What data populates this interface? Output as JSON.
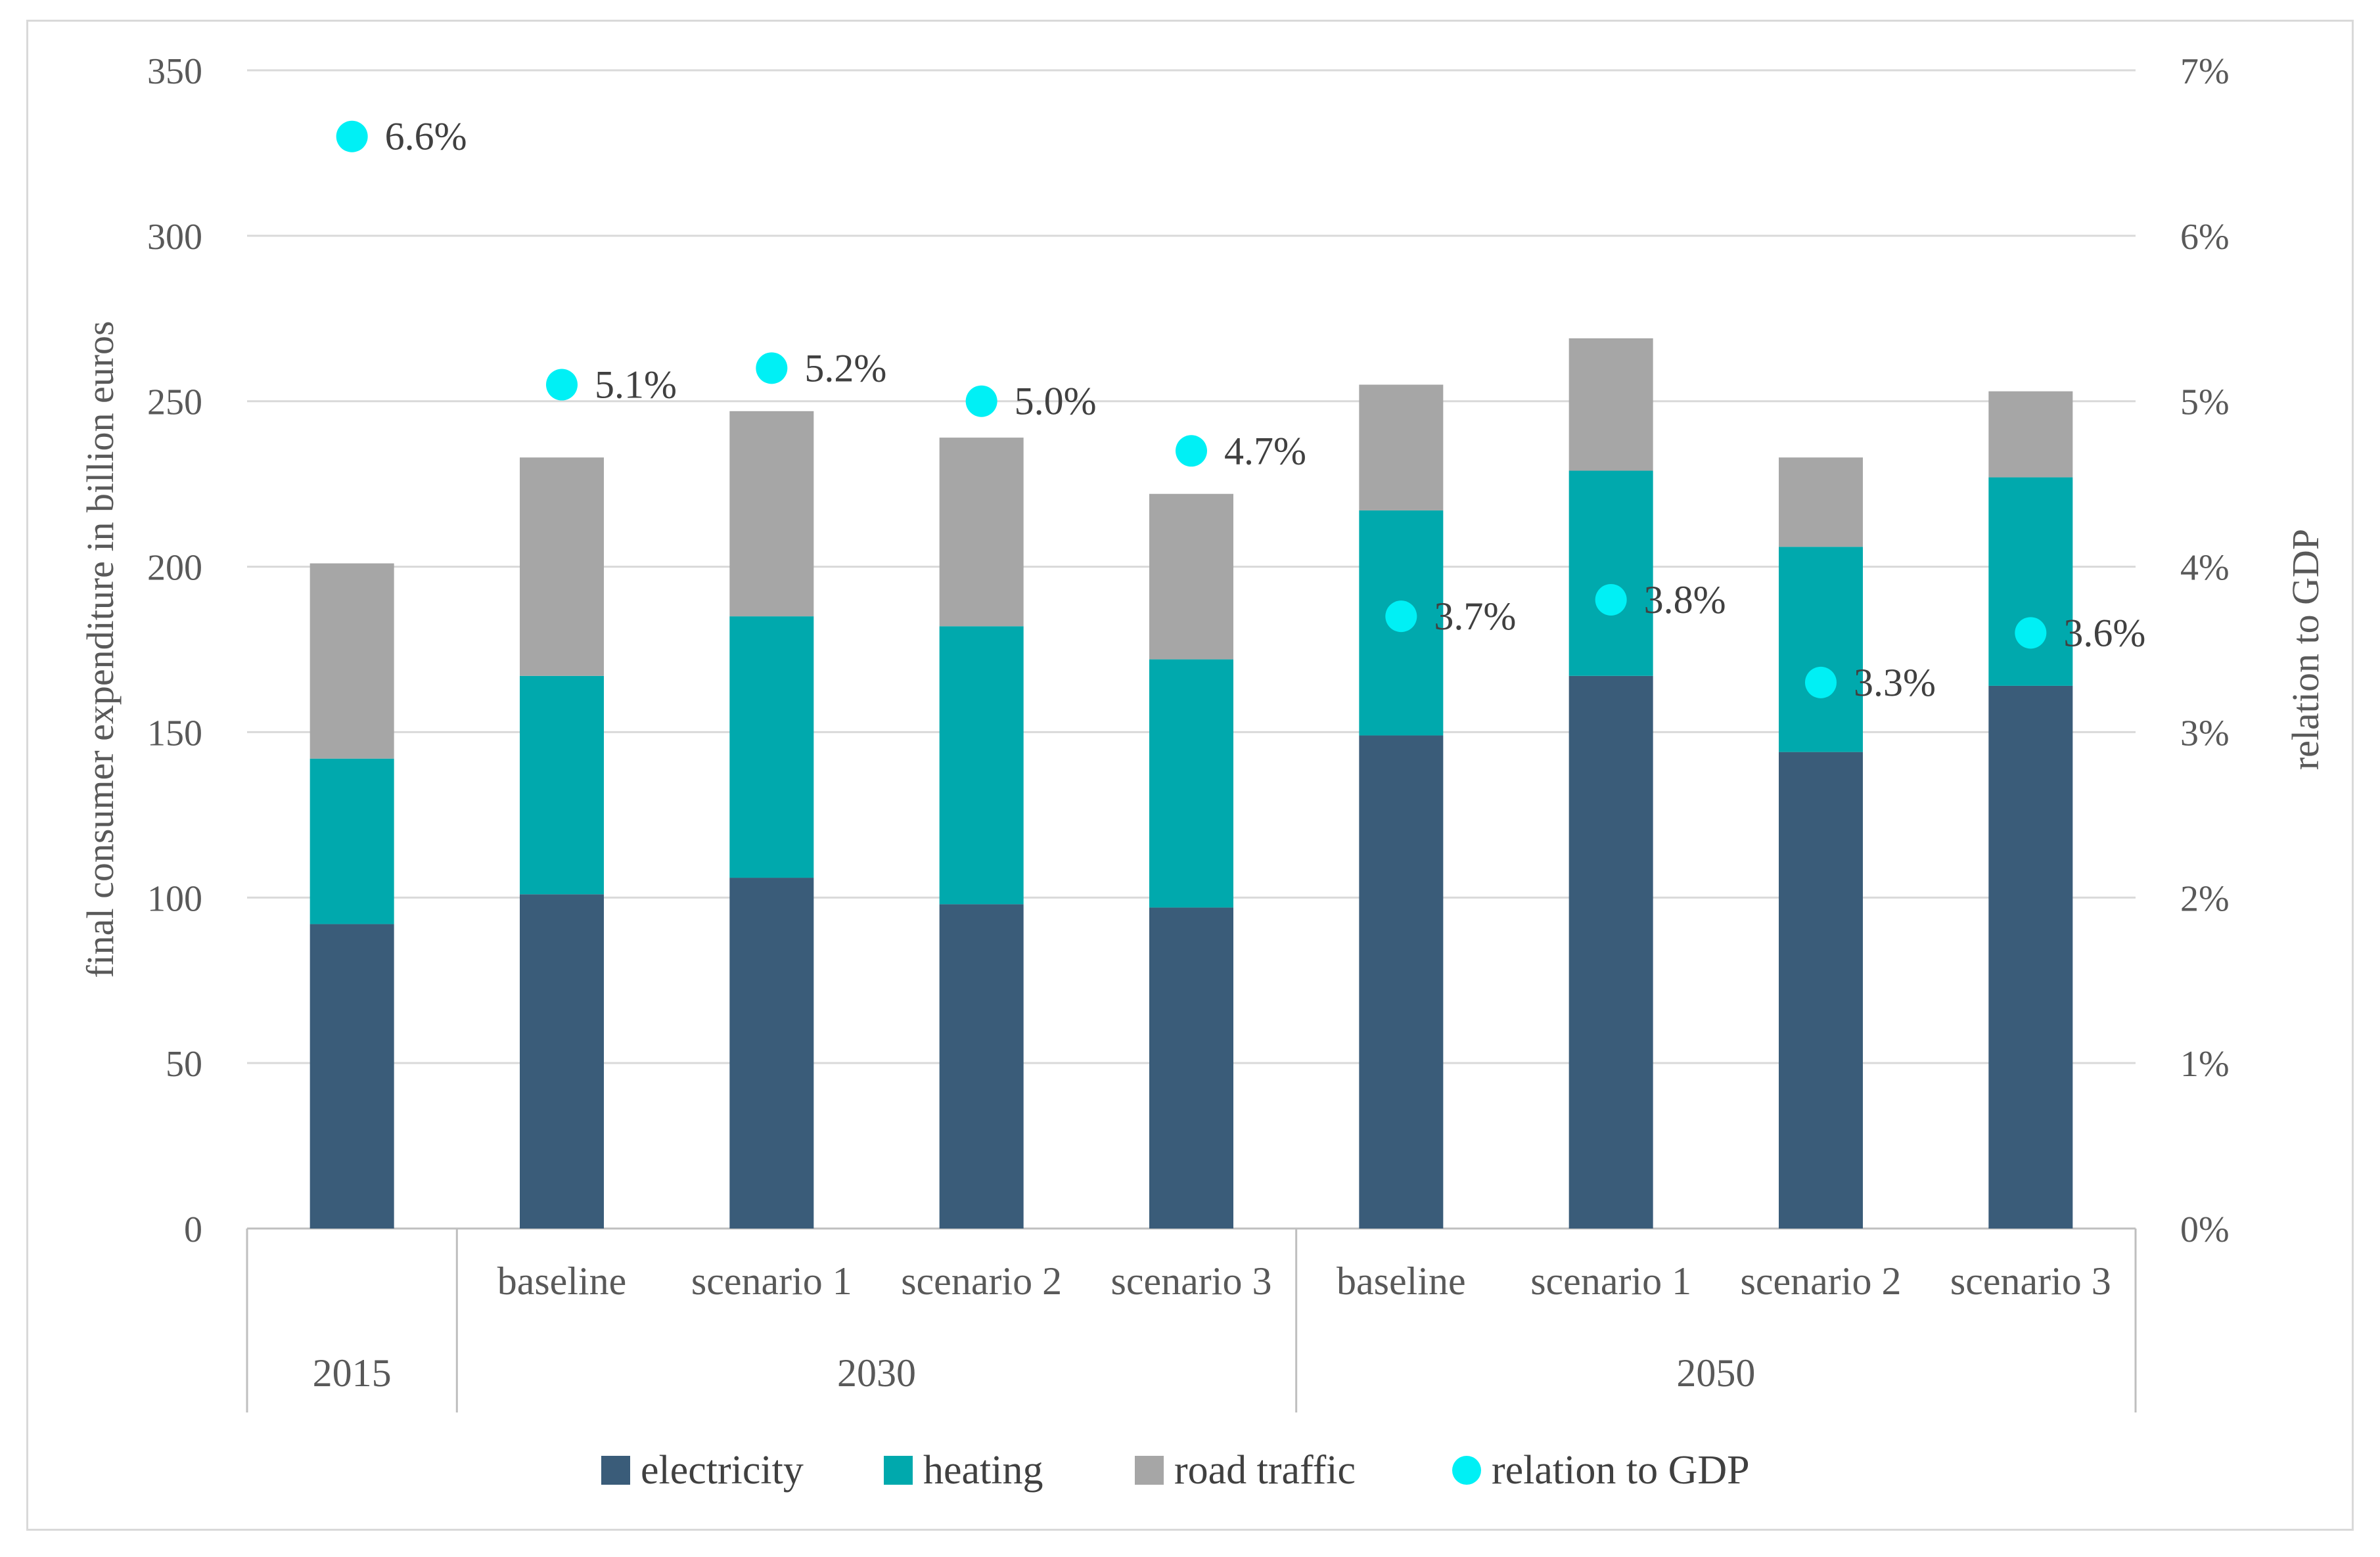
{
  "chart_data": {
    "type": "bar",
    "stacked": true,
    "categories": [
      {
        "label": "",
        "group": "2015"
      },
      {
        "label": "baseline",
        "group": "2030"
      },
      {
        "label": "scenario 1",
        "group": "2030"
      },
      {
        "label": "scenario 2",
        "group": "2030"
      },
      {
        "label": "scenario 3",
        "group": "2030"
      },
      {
        "label": "baseline",
        "group": "2050"
      },
      {
        "label": "scenario 1",
        "group": "2050"
      },
      {
        "label": "scenario 2",
        "group": "2050"
      },
      {
        "label": "scenario 3",
        "group": "2050"
      }
    ],
    "groups": [
      "2015",
      "2030",
      "2050"
    ],
    "series": [
      {
        "name": "electricity",
        "color": "#3a5c79",
        "axis": "left",
        "values": [
          92,
          101,
          106,
          98,
          97,
          149,
          167,
          144,
          164
        ]
      },
      {
        "name": "heating",
        "color": "#00a9ad",
        "axis": "left",
        "values": [
          50,
          66,
          79,
          84,
          75,
          68,
          62,
          62,
          63
        ]
      },
      {
        "name": "road traffic",
        "color": "#a6a6a6",
        "axis": "left",
        "values": [
          59,
          66,
          62,
          57,
          50,
          38,
          40,
          27,
          26
        ]
      },
      {
        "name": "relation to GDP",
        "color": "#00f0f5",
        "axis": "right",
        "type": "scatter",
        "values": [
          6.6,
          5.1,
          5.2,
          5.0,
          4.7,
          3.7,
          3.8,
          3.3,
          3.6
        ],
        "labels": [
          "6.6%",
          "5.1%",
          "5.2%",
          "5.0%",
          "4.7%",
          "3.7%",
          "3.8%",
          "3.3%",
          "3.6%"
        ]
      }
    ],
    "ylabel": "final consumer expenditure in billion euros",
    "y2label": "relation to GDP",
    "ylim": [
      0,
      350
    ],
    "y2lim": [
      0,
      7
    ],
    "yticks": [
      "0",
      "50",
      "100",
      "150",
      "200",
      "250",
      "300",
      "350"
    ],
    "y2ticks": [
      "0%",
      "1%",
      "2%",
      "3%",
      "4%",
      "5%",
      "6%",
      "7%"
    ],
    "grid": true,
    "legend_position": "bottom"
  }
}
